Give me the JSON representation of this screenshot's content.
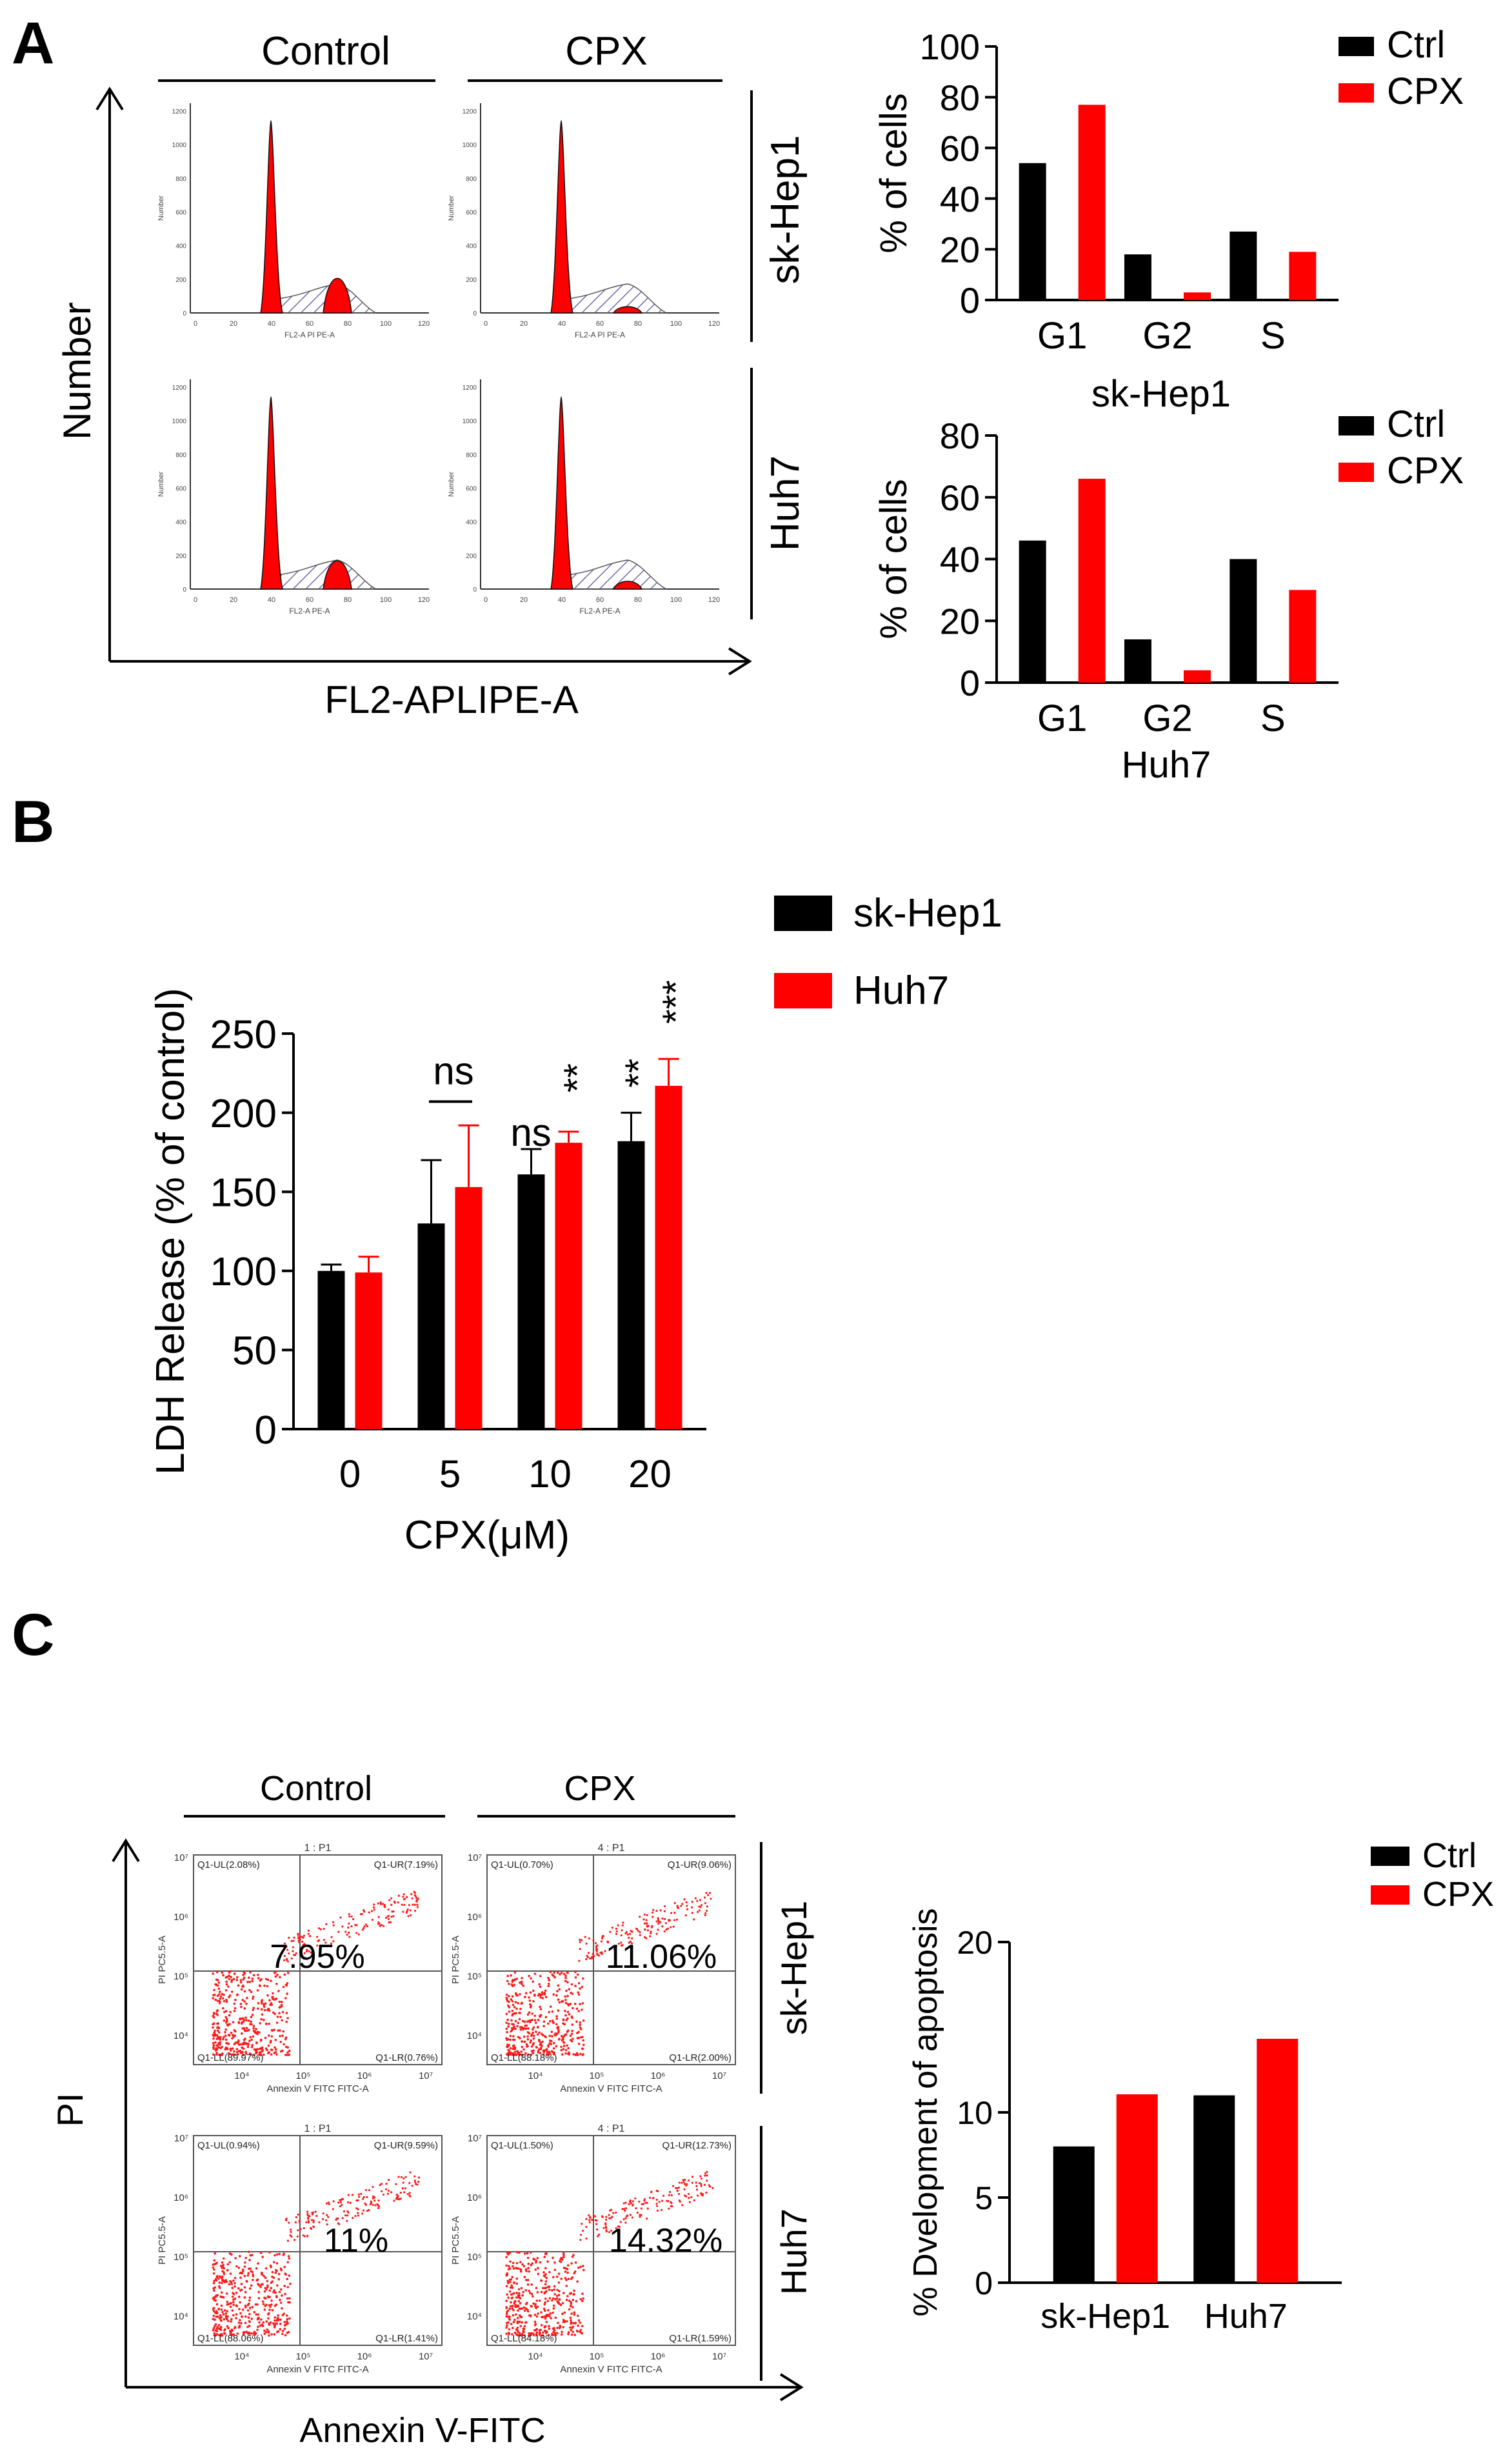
{
  "panels": {
    "a": {
      "label": "A",
      "histograms": {
        "x_axis_title": "FL2-APLIPE-A",
        "y_axis_title": "Number",
        "col_headers": [
          "Control",
          "CPX"
        ],
        "row_labels": [
          "sk-Hep1",
          "Huh7"
        ],
        "small_x_label_top": "FL2-A PI PE-A",
        "small_x_label_bottom": "FL2-A PE-A",
        "small_y_label": "Number",
        "x_ticks": [
          "0",
          "20",
          "40",
          "60",
          "80",
          "100",
          "120"
        ],
        "y_ticks": [
          "0",
          "200",
          "400",
          "600",
          "800",
          "1000",
          "1200"
        ]
      }
    },
    "b": {
      "label": "B"
    },
    "c": {
      "label": "C",
      "dotplots": {
        "x_axis_title": "Annexin V-FITC",
        "y_axis_title": "PI",
        "col_headers": [
          "Control",
          "CPX"
        ],
        "row_labels": [
          "sk-Hep1",
          "Huh7"
        ],
        "small_x_label": "Annexin V FITC FITC-A",
        "small_y_label": "PI PC5.5-A",
        "x_ticks": [
          "10⁴",
          "10⁵",
          "10⁶",
          "10⁷"
        ],
        "y_ticks": [
          "10⁴",
          "10⁵",
          "10⁶",
          "10⁷"
        ],
        "plots": [
          {
            "title": "1 : P1",
            "ul": "Q1-UL(2.08%)",
            "ur": "Q1-UR(7.19%)",
            "ll": "Q1-LL(89.97%)",
            "lr": "Q1-LR(0.76%)",
            "big": "7.95%"
          },
          {
            "title": "4 : P1",
            "ul": "Q1-UL(0.70%)",
            "ur": "Q1-UR(9.06%)",
            "ll": "Q1-LL(88.18%)",
            "lr": "Q1-LR(2.00%)",
            "big": "11.06%"
          },
          {
            "title": "1 : P1",
            "ul": "Q1-UL(0.94%)",
            "ur": "Q1-UR(9.59%)",
            "ll": "Q1-LL(88.06%)",
            "lr": "Q1-LR(1.41%)",
            "big": "11%"
          },
          {
            "title": "4 : P1",
            "ul": "Q1-UL(1.50%)",
            "ur": "Q1-UR(12.73%)",
            "ll": "Q1-LL(84.18%)",
            "lr": "Q1-LR(1.59%)",
            "big": "14.32%"
          }
        ]
      }
    }
  },
  "colors": {
    "ctrl": "#000000",
    "cpx": "#ff0000",
    "hatch": "#6a6aa8"
  },
  "chart_data": [
    {
      "id": "a-skhep1",
      "type": "bar",
      "categories": [
        "G1",
        "G2",
        "S"
      ],
      "series": [
        {
          "name": "Ctrl",
          "values": [
            54,
            18,
            27
          ]
        },
        {
          "name": "CPX",
          "values": [
            77,
            3,
            19
          ]
        }
      ],
      "title": "sk-Hep1",
      "ylabel": "% of cells",
      "ylim": [
        0,
        100
      ],
      "yticks": [
        0,
        20,
        40,
        60,
        80,
        100
      ]
    },
    {
      "id": "a-huh7",
      "type": "bar",
      "categories": [
        "G1",
        "G2",
        "S"
      ],
      "series": [
        {
          "name": "Ctrl",
          "values": [
            46,
            14,
            40
          ]
        },
        {
          "name": "CPX",
          "values": [
            66,
            4,
            30
          ]
        }
      ],
      "title": "Huh7",
      "ylabel": "% of cells",
      "ylim": [
        0,
        80
      ],
      "yticks": [
        0,
        20,
        40,
        60,
        80
      ]
    },
    {
      "id": "b-ldh",
      "type": "bar",
      "categories": [
        "0",
        "5",
        "10",
        "20"
      ],
      "series": [
        {
          "name": "sk-Hep1",
          "values": [
            100,
            130,
            161,
            182
          ],
          "errors": [
            4,
            40,
            16,
            18
          ]
        },
        {
          "name": "Huh7",
          "values": [
            99,
            153,
            181,
            217
          ],
          "errors": [
            10,
            39,
            7,
            17
          ]
        }
      ],
      "xlabel": "CPX(μM)",
      "ylabel": "LDH Release (% of control)",
      "ylim": [
        0,
        250
      ],
      "yticks": [
        0,
        50,
        100,
        150,
        200,
        250
      ],
      "annotations": [
        "ns",
        "ns",
        "**",
        "**",
        "***"
      ]
    },
    {
      "id": "c-apoptosis",
      "type": "bar",
      "categories": [
        "sk-Hep1",
        "Huh7"
      ],
      "series": [
        {
          "name": "Ctrl",
          "values": [
            8,
            11
          ]
        },
        {
          "name": "CPX",
          "values": [
            11.06,
            14.32
          ]
        }
      ],
      "ylabel": "% Dvelopment of apoptosis",
      "ylim": [
        0,
        20
      ],
      "yticks": [
        0,
        5,
        10,
        20
      ]
    }
  ]
}
